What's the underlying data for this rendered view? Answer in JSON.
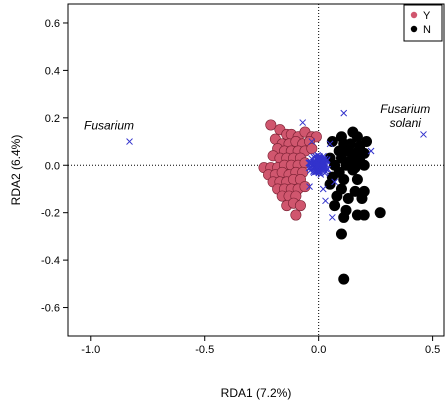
{
  "chart_data": {
    "type": "scatter",
    "xlabel": "RDA1 (7.2%)",
    "ylabel": "RDA2 (6.4%)",
    "xlim": [
      -1.1,
      0.55
    ],
    "ylim": [
      -0.72,
      0.68
    ],
    "x_ticks": [
      -1.0,
      -0.5,
      0.0,
      0.5
    ],
    "x_tick_labels": [
      "-1.0",
      "-0.5",
      "0.0",
      "0.5"
    ],
    "y_ticks": [
      -0.6,
      -0.4,
      -0.2,
      0.0,
      0.2,
      0.4,
      0.6
    ],
    "y_tick_labels": [
      "-0.6",
      "-0.4",
      "-0.2",
      "0.0",
      "0.2",
      "0.4",
      "0.6"
    ],
    "grid": false,
    "reference_lines": {
      "x": 0,
      "y": 0,
      "style": "dotted"
    },
    "legend": {
      "position": "top-right",
      "entries": [
        {
          "label": "Y",
          "color": "#d0566e"
        },
        {
          "label": "N",
          "color": "#000000"
        }
      ]
    },
    "annotations": [
      {
        "lines": [
          "Fusarium"
        ],
        "x": -0.92,
        "y": 0.15
      },
      {
        "lines": [
          "Fusarium",
          "solani"
        ],
        "x": 0.38,
        "y": 0.22
      }
    ],
    "series": [
      {
        "name": "Y",
        "marker": "circle",
        "color": "#d0566e",
        "points": [
          [
            -0.21,
            0.17
          ],
          [
            -0.17,
            0.15
          ],
          [
            -0.14,
            0.13
          ],
          [
            -0.12,
            0.13
          ],
          [
            -0.09,
            0.12
          ],
          [
            -0.06,
            0.14
          ],
          [
            -0.03,
            0.12
          ],
          [
            -0.01,
            0.12
          ],
          [
            -0.19,
            0.11
          ],
          [
            -0.16,
            0.09
          ],
          [
            -0.13,
            0.09
          ],
          [
            -0.1,
            0.1
          ],
          [
            -0.07,
            0.09
          ],
          [
            -0.04,
            0.1
          ],
          [
            -0.18,
            0.07
          ],
          [
            -0.15,
            0.06
          ],
          [
            -0.12,
            0.06
          ],
          [
            -0.09,
            0.06
          ],
          [
            -0.06,
            0.06
          ],
          [
            -0.03,
            0.07
          ],
          [
            -0.2,
            0.04
          ],
          [
            -0.17,
            0.03
          ],
          [
            -0.14,
            0.03
          ],
          [
            -0.11,
            0.03
          ],
          [
            -0.08,
            0.03
          ],
          [
            -0.24,
            -0.01
          ],
          [
            -0.21,
            -0.01
          ],
          [
            -0.18,
            -0.01
          ],
          [
            -0.15,
            0.0
          ],
          [
            -0.12,
            0.0
          ],
          [
            -0.09,
            0.0
          ],
          [
            -0.06,
            0.01
          ],
          [
            -0.22,
            -0.04
          ],
          [
            -0.19,
            -0.04
          ],
          [
            -0.16,
            -0.03
          ],
          [
            -0.13,
            -0.04
          ],
          [
            -0.1,
            -0.03
          ],
          [
            -0.07,
            -0.03
          ],
          [
            -0.2,
            -0.07
          ],
          [
            -0.17,
            -0.07
          ],
          [
            -0.14,
            -0.07
          ],
          [
            -0.11,
            -0.06
          ],
          [
            -0.08,
            -0.06
          ],
          [
            -0.18,
            -0.1
          ],
          [
            -0.15,
            -0.1
          ],
          [
            -0.12,
            -0.1
          ],
          [
            -0.09,
            -0.1
          ],
          [
            -0.06,
            -0.09
          ],
          [
            -0.16,
            -0.13
          ],
          [
            -0.13,
            -0.13
          ],
          [
            -0.1,
            -0.13
          ],
          [
            -0.14,
            -0.17
          ],
          [
            -0.11,
            -0.16
          ],
          [
            -0.08,
            -0.17
          ],
          [
            -0.1,
            -0.21
          ]
        ]
      },
      {
        "name": "N",
        "marker": "circle",
        "color": "#000000",
        "points": [
          [
            0.1,
            0.12
          ],
          [
            0.15,
            0.14
          ],
          [
            0.17,
            0.12
          ],
          [
            0.21,
            0.1
          ],
          [
            0.06,
            0.1
          ],
          [
            0.11,
            0.09
          ],
          [
            0.14,
            0.09
          ],
          [
            0.18,
            0.08
          ],
          [
            0.09,
            0.06
          ],
          [
            0.13,
            0.06
          ],
          [
            0.16,
            0.05
          ],
          [
            0.2,
            0.05
          ],
          [
            0.05,
            0.03
          ],
          [
            0.1,
            0.03
          ],
          [
            0.14,
            0.02
          ],
          [
            0.18,
            0.02
          ],
          [
            0.07,
            0.0
          ],
          [
            0.12,
            0.0
          ],
          [
            0.16,
            -0.01
          ],
          [
            0.2,
            0.0
          ],
          [
            0.09,
            -0.03
          ],
          [
            0.15,
            -0.02
          ],
          [
            0.06,
            -0.05
          ],
          [
            0.11,
            -0.06
          ],
          [
            0.17,
            -0.06
          ],
          [
            0.05,
            -0.08
          ],
          [
            0.1,
            -0.1
          ],
          [
            0.16,
            -0.11
          ],
          [
            0.2,
            -0.11
          ],
          [
            0.08,
            -0.13
          ],
          [
            0.13,
            -0.14
          ],
          [
            0.19,
            -0.14
          ],
          [
            0.07,
            -0.17
          ],
          [
            0.12,
            -0.19
          ],
          [
            0.17,
            -0.21
          ],
          [
            0.2,
            -0.21
          ],
          [
            0.11,
            -0.22
          ],
          [
            0.27,
            -0.2
          ],
          [
            0.1,
            -0.29
          ],
          [
            0.11,
            -0.48
          ]
        ]
      },
      {
        "name": "",
        "marker": "x",
        "color": "#3333cc",
        "points": [
          [
            -0.83,
            0.1
          ],
          [
            0.46,
            0.13
          ],
          [
            -0.07,
            0.18
          ],
          [
            0.11,
            0.22
          ],
          [
            -0.03,
            0.1
          ],
          [
            0.05,
            0.09
          ],
          [
            -0.04,
            -0.09
          ],
          [
            0.02,
            -0.1
          ],
          [
            0.06,
            -0.22
          ],
          [
            0.23,
            0.06
          ],
          [
            0.03,
            -0.15
          ],
          [
            0.07,
            -0.07
          ]
        ]
      }
    ]
  }
}
